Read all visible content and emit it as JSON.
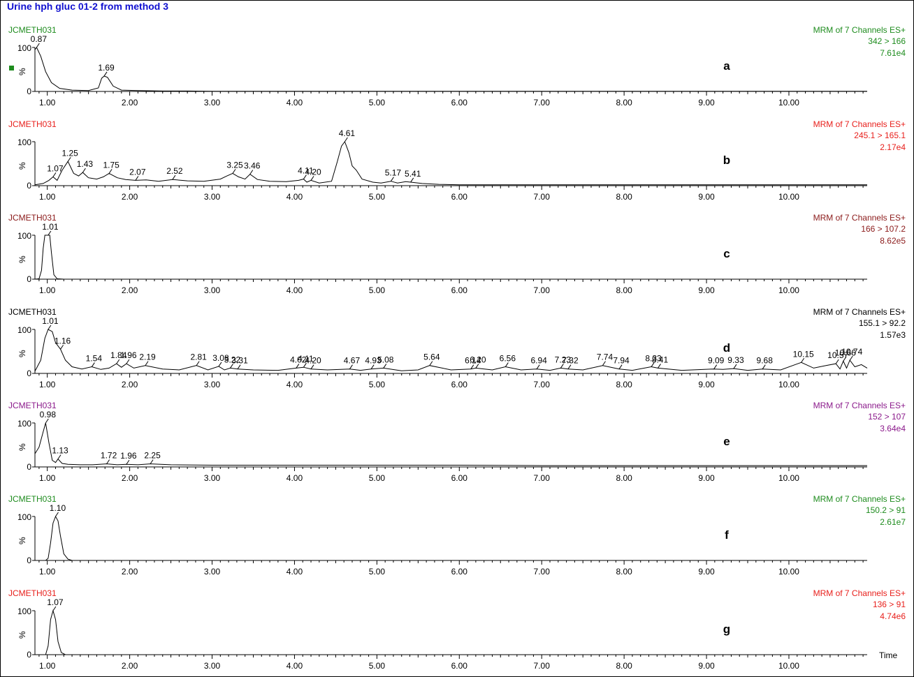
{
  "title": "Urine hph gluc 01-2 from method 3",
  "x_axis_label": "Time",
  "chart_data": {
    "type": "line",
    "xlim": [
      0.85,
      10.95
    ],
    "x_ticks": [
      "1.00",
      "2.00",
      "3.00",
      "4.00",
      "5.00",
      "6.00",
      "7.00",
      "8.00",
      "9.00",
      "10.00"
    ],
    "x_tick_values": [
      1,
      2,
      3,
      4,
      5,
      6,
      7,
      8,
      9,
      10
    ],
    "panels": [
      {
        "letter": "a",
        "sample": "JCMETH031",
        "scan": "MRM of 7 Channels ES+",
        "transition": "342 > 166",
        "intensity": "7.61e4",
        "color": "#1e8c1e",
        "y_ticks": [
          "0",
          "100"
        ],
        "y_label": "%",
        "peaks": [
          {
            "label": "0.87",
            "x": 0.87
          },
          {
            "label": "1.69",
            "x": 1.69
          }
        ],
        "x": [
          0.85,
          0.87,
          0.92,
          0.98,
          1.05,
          1.15,
          1.3,
          1.5,
          1.62,
          1.66,
          1.69,
          1.73,
          1.8,
          1.9,
          2.1,
          2.4,
          2.7,
          3.0,
          5.0,
          8.0,
          10.95
        ],
        "y": [
          95,
          100,
          80,
          45,
          20,
          7,
          3,
          2,
          8,
          30,
          35,
          32,
          12,
          3,
          2,
          1,
          1,
          0.5,
          0.5,
          0.5,
          0.5
        ]
      },
      {
        "letter": "b",
        "sample": "JCMETH031",
        "scan": "MRM of 7 Channels ES+",
        "transition": "245.1 > 165.1",
        "intensity": "2.17e4",
        "color": "#e8201c",
        "y_ticks": [
          "0",
          "100"
        ],
        "y_label": "%",
        "peaks": [
          {
            "label": "1.07",
            "x": 1.07
          },
          {
            "label": "1.25",
            "x": 1.25
          },
          {
            "label": "1.43",
            "x": 1.43
          },
          {
            "label": "1.75",
            "x": 1.75
          },
          {
            "label": "2.07",
            "x": 2.07
          },
          {
            "label": "2.52",
            "x": 2.52
          },
          {
            "label": "3.25",
            "x": 3.25
          },
          {
            "label": "3.46",
            "x": 3.46
          },
          {
            "label": "4.11",
            "x": 4.11
          },
          {
            "label": "4.20",
            "x": 4.2
          },
          {
            "label": "4.61",
            "x": 4.61
          },
          {
            "label": "5.17",
            "x": 5.17
          },
          {
            "label": "5.41",
            "x": 5.41
          }
        ],
        "x": [
          0.85,
          0.95,
          1.02,
          1.07,
          1.12,
          1.18,
          1.25,
          1.32,
          1.38,
          1.43,
          1.5,
          1.6,
          1.68,
          1.75,
          1.85,
          1.95,
          2.07,
          2.2,
          2.35,
          2.52,
          2.7,
          2.9,
          3.1,
          3.18,
          3.25,
          3.32,
          3.4,
          3.46,
          3.55,
          3.7,
          3.9,
          4.05,
          4.11,
          4.15,
          4.2,
          4.3,
          4.45,
          4.52,
          4.57,
          4.61,
          4.66,
          4.7,
          4.75,
          4.82,
          4.95,
          5.05,
          5.17,
          5.25,
          5.35,
          5.41,
          5.55,
          5.75,
          6.0,
          6.5,
          7.0,
          7.5,
          8.0,
          8.5,
          9.0,
          9.5,
          10.0,
          10.5,
          10.95
        ],
        "y": [
          2,
          5,
          12,
          20,
          12,
          35,
          55,
          28,
          22,
          30,
          18,
          15,
          20,
          28,
          18,
          14,
          12,
          13,
          10,
          14,
          11,
          10,
          15,
          22,
          28,
          20,
          15,
          26,
          14,
          10,
          9,
          12,
          15,
          8,
          12,
          6,
          10,
          55,
          90,
          100,
          75,
          45,
          35,
          15,
          8,
          6,
          10,
          6,
          9,
          8,
          5,
          3,
          2,
          2,
          2,
          2,
          2,
          2,
          2,
          2,
          2,
          2,
          2
        ]
      },
      {
        "letter": "c",
        "sample": "JCMETH031",
        "scan": "MRM of 7 Channels ES+",
        "transition": "166 > 107.2",
        "intensity": "8.62e5",
        "color": "#8b1a1a",
        "y_ticks": [
          "0",
          "100"
        ],
        "y_label": "%",
        "peaks": [
          {
            "label": "1.01",
            "x": 1.01
          }
        ],
        "x": [
          0.85,
          0.9,
          0.93,
          0.95,
          0.97,
          1.01,
          1.03,
          1.05,
          1.08,
          1.12,
          1.2,
          10.95
        ],
        "y": [
          0,
          1,
          20,
          70,
          100,
          100,
          100,
          60,
          10,
          1,
          0,
          0
        ]
      },
      {
        "letter": "d",
        "sample": "JCMETH031",
        "scan": "MRM of 7 Channels ES+",
        "transition": "155.1 > 92.2",
        "intensity": "1.57e3",
        "color": "#000000",
        "y_ticks": [
          "0",
          "100"
        ],
        "y_label": "%",
        "peaks": [
          {
            "label": "1.01",
            "x": 1.01
          },
          {
            "label": "1.16",
            "x": 1.16
          },
          {
            "label": "1.54",
            "x": 1.54
          },
          {
            "label": "1.84",
            "x": 1.84
          },
          {
            "label": "1.96",
            "x": 1.96
          },
          {
            "label": "2.19",
            "x": 2.19
          },
          {
            "label": "2.81",
            "x": 2.81
          },
          {
            "label": "3.08",
            "x": 3.08
          },
          {
            "label": "3.22",
            "x": 3.22
          },
          {
            "label": "3.31",
            "x": 3.31
          },
          {
            "label": "4.02",
            "x": 4.02
          },
          {
            "label": "4.11",
            "x": 4.11
          },
          {
            "label": "4.20",
            "x": 4.2
          },
          {
            "label": "4.67",
            "x": 4.67
          },
          {
            "label": "4.93",
            "x": 4.93
          },
          {
            "label": "5.08",
            "x": 5.08
          },
          {
            "label": "5.64",
            "x": 5.64
          },
          {
            "label": "6.14",
            "x": 6.14
          },
          {
            "label": "6.20",
            "x": 6.2
          },
          {
            "label": "6.56",
            "x": 6.56
          },
          {
            "label": "6.94",
            "x": 6.94
          },
          {
            "label": "7.23",
            "x": 7.23
          },
          {
            "label": "7.32",
            "x": 7.32
          },
          {
            "label": "7.74",
            "x": 7.74
          },
          {
            "label": "7.94",
            "x": 7.94
          },
          {
            "label": "8.33",
            "x": 8.33
          },
          {
            "label": "8.41",
            "x": 8.41
          },
          {
            "label": "9.09",
            "x": 9.09
          },
          {
            "label": "9.33",
            "x": 9.33
          },
          {
            "label": "9.68",
            "x": 9.68
          },
          {
            "label": "10.15",
            "x": 10.15
          },
          {
            "label": "10.57",
            "x": 10.57
          },
          {
            "label": "10.66",
            "x": 10.66
          },
          {
            "label": "10.74",
            "x": 10.74
          }
        ],
        "x": [
          0.85,
          0.92,
          0.97,
          1.01,
          1.06,
          1.1,
          1.16,
          1.22,
          1.3,
          1.42,
          1.54,
          1.65,
          1.75,
          1.84,
          1.9,
          1.96,
          2.05,
          2.19,
          2.4,
          2.6,
          2.81,
          2.95,
          3.08,
          3.15,
          3.22,
          3.31,
          3.5,
          3.8,
          4.02,
          4.11,
          4.2,
          4.4,
          4.67,
          4.8,
          4.93,
          5.08,
          5.3,
          5.5,
          5.64,
          5.9,
          6.14,
          6.2,
          6.4,
          6.56,
          6.75,
          6.94,
          7.1,
          7.23,
          7.32,
          7.5,
          7.74,
          7.94,
          8.1,
          8.33,
          8.41,
          8.7,
          9.09,
          9.2,
          9.33,
          9.5,
          9.68,
          9.9,
          10.15,
          10.3,
          10.45,
          10.57,
          10.62,
          10.66,
          10.7,
          10.74,
          10.8,
          10.88,
          10.95
        ],
        "y": [
          5,
          30,
          80,
          100,
          95,
          70,
          55,
          30,
          15,
          10,
          15,
          9,
          12,
          22,
          14,
          22,
          12,
          18,
          10,
          8,
          18,
          8,
          16,
          8,
          12,
          10,
          8,
          7,
          12,
          14,
          10,
          8,
          10,
          7,
          10,
          12,
          6,
          8,
          18,
          8,
          10,
          12,
          8,
          15,
          8,
          10,
          7,
          12,
          10,
          8,
          18,
          10,
          7,
          15,
          12,
          7,
          10,
          9,
          11,
          7,
          10,
          8,
          25,
          12,
          18,
          22,
          10,
          28,
          12,
          30,
          15,
          20,
          12
        ]
      },
      {
        "letter": "e",
        "sample": "JCMETH031",
        "scan": "MRM of 7 Channels ES+",
        "transition": "152 > 107",
        "intensity": "3.64e4",
        "color": "#8b1a8b",
        "y_ticks": [
          "0",
          "100"
        ],
        "y_label": "%",
        "peaks": [
          {
            "label": "0.98",
            "x": 0.98
          },
          {
            "label": "1.13",
            "x": 1.13
          },
          {
            "label": "1.72",
            "x": 1.72
          },
          {
            "label": "1.96",
            "x": 1.96
          },
          {
            "label": "2.25",
            "x": 2.25
          }
        ],
        "x": [
          0.85,
          0.9,
          0.95,
          0.98,
          1.02,
          1.06,
          1.1,
          1.13,
          1.18,
          1.25,
          1.4,
          1.55,
          1.72,
          1.85,
          1.96,
          2.1,
          2.25,
          2.5,
          3.0,
          4.0,
          5.0,
          6.0,
          7.0,
          8.0,
          9.0,
          10.0,
          10.95
        ],
        "y": [
          30,
          45,
          80,
          100,
          55,
          15,
          10,
          18,
          8,
          6,
          5,
          5,
          7,
          5,
          6,
          5,
          7,
          5,
          4,
          4,
          4,
          4,
          3,
          3,
          3,
          3,
          3
        ]
      },
      {
        "letter": "f",
        "sample": "JCMETH031",
        "scan": "MRM of 7 Channels ES+",
        "transition": "150.2 > 91",
        "intensity": "2.61e7",
        "color": "#1e8c1e",
        "y_ticks": [
          "0",
          "100"
        ],
        "y_label": "%",
        "peaks": [
          {
            "label": "1.10",
            "x": 1.1
          }
        ],
        "x": [
          0.85,
          0.98,
          1.01,
          1.04,
          1.07,
          1.1,
          1.13,
          1.16,
          1.2,
          1.25,
          1.3,
          10.95
        ],
        "y": [
          0,
          0,
          5,
          40,
          85,
          100,
          90,
          55,
          15,
          3,
          0,
          0
        ]
      },
      {
        "letter": "g",
        "sample": "JCMETH031",
        "scan": "MRM of 7 Channels ES+",
        "transition": "136 > 91",
        "intensity": "4.74e6",
        "color": "#e8201c",
        "y_ticks": [
          "0",
          "100"
        ],
        "y_label": "%",
        "peaks": [
          {
            "label": "1.07",
            "x": 1.07
          }
        ],
        "x": [
          0.85,
          0.98,
          1.01,
          1.04,
          1.07,
          1.1,
          1.13,
          1.17,
          1.22,
          10.95
        ],
        "y": [
          0,
          0,
          20,
          80,
          100,
          80,
          30,
          5,
          0,
          0
        ]
      }
    ]
  }
}
